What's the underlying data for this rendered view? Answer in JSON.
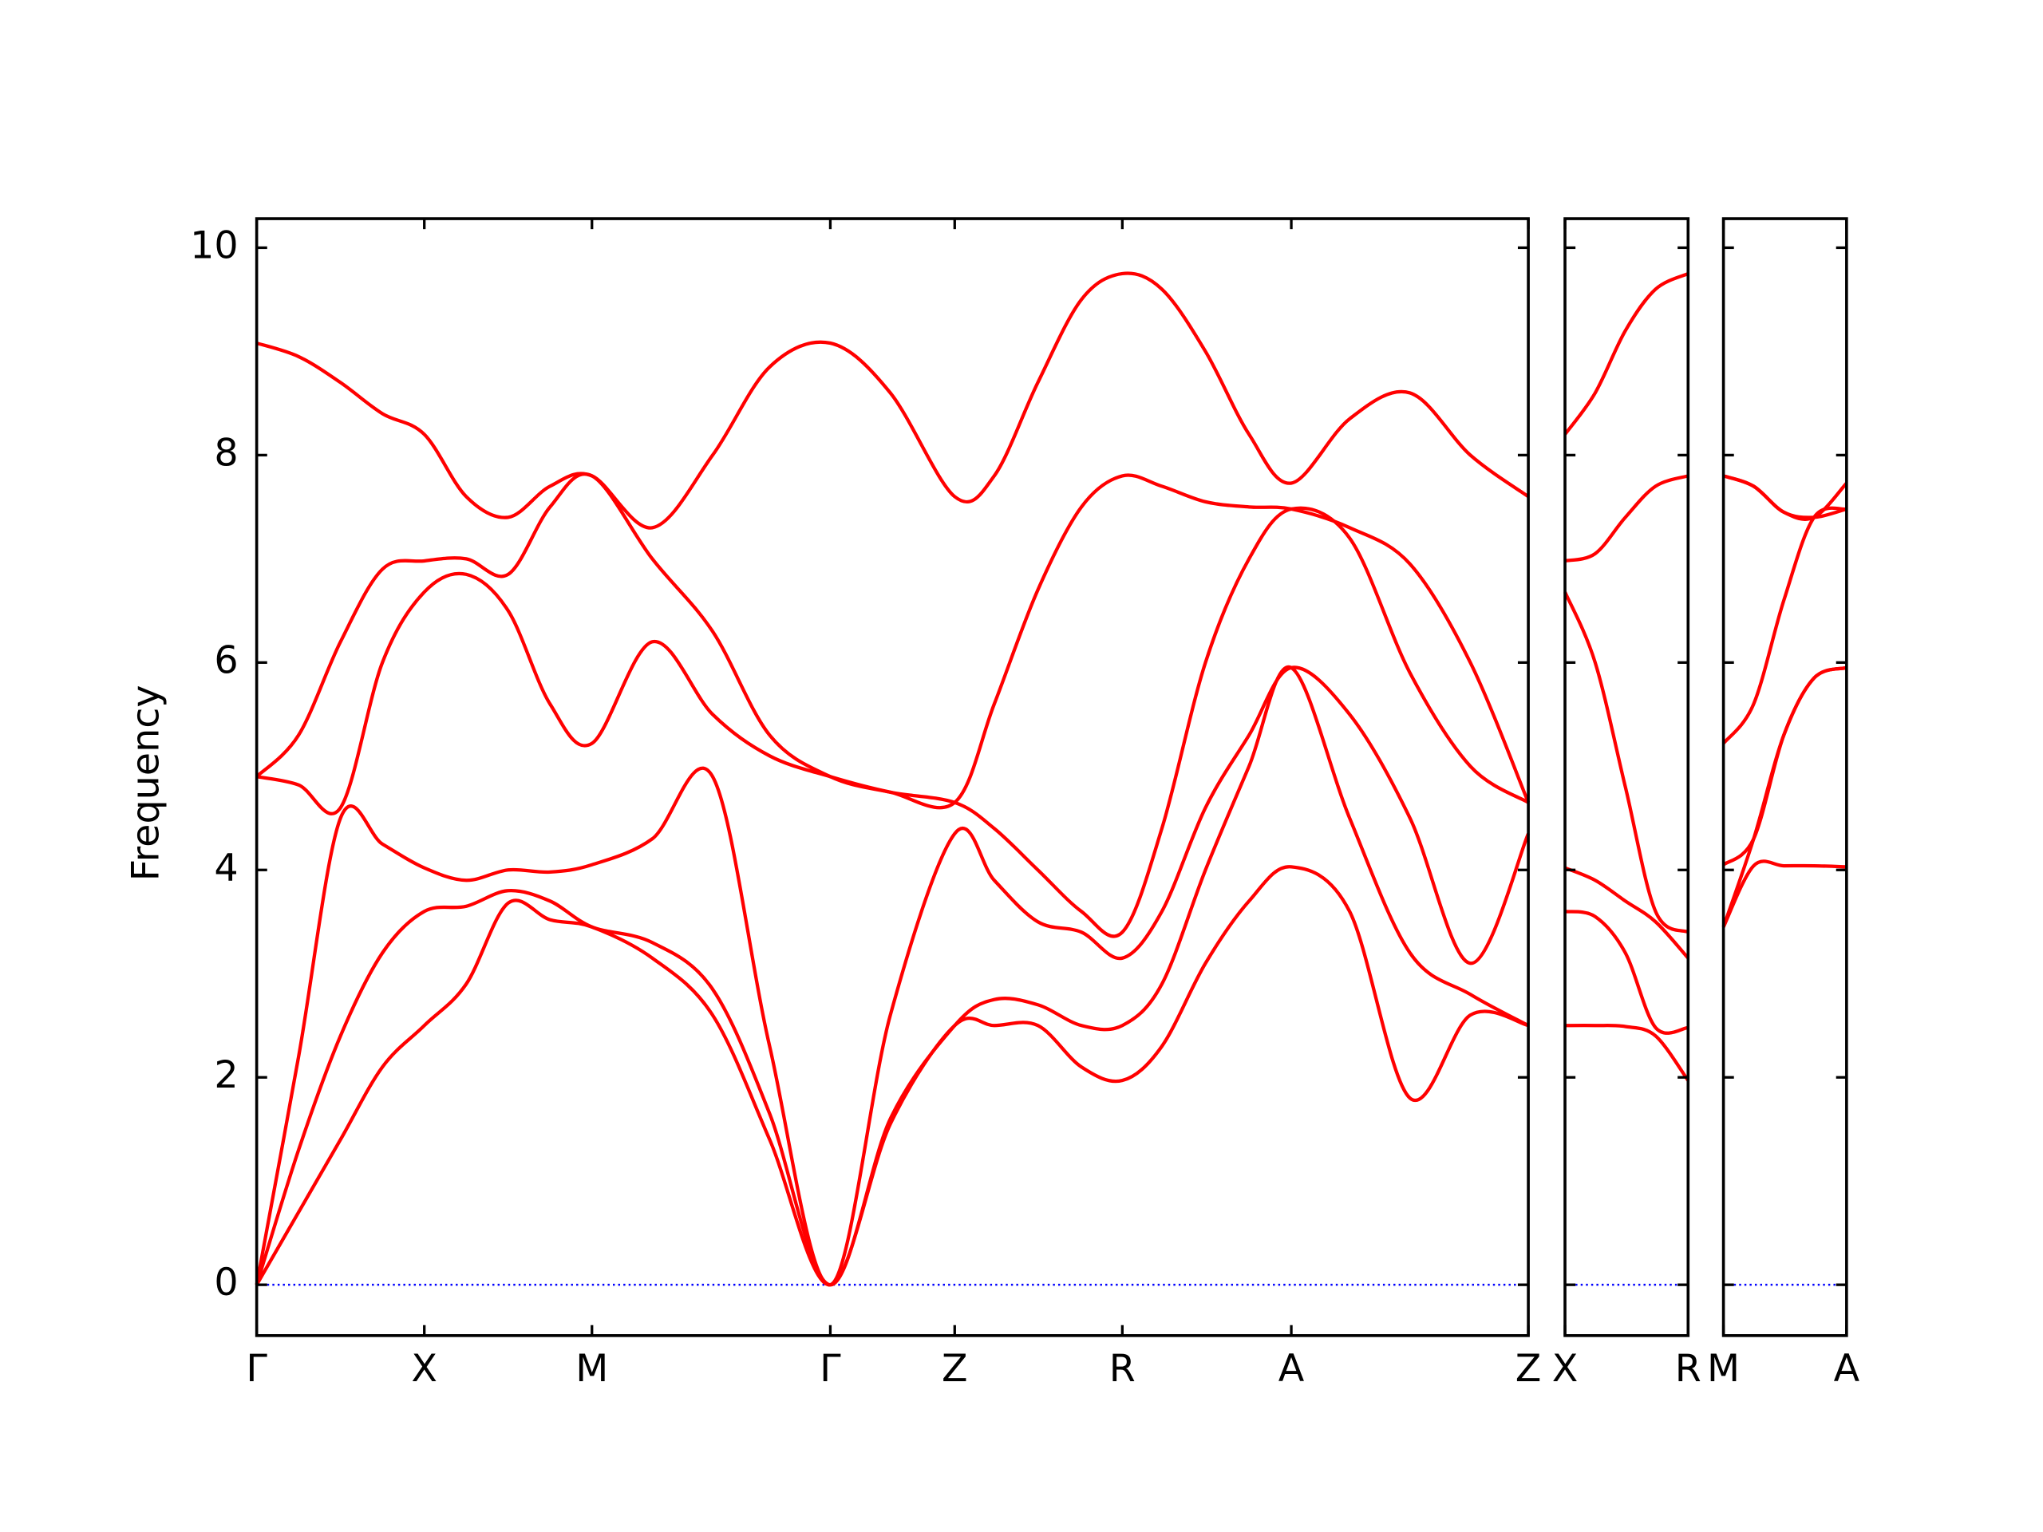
{
  "chart_data": [
    {
      "type": "line",
      "y_label": "Frequency",
      "x": [
        0,
        0.125,
        0.25,
        0.375,
        0.5,
        0.625,
        0.75,
        0.875,
        1.0,
        1.18,
        1.36,
        1.53,
        1.711,
        1.89,
        2.082,
        2.2,
        2.33,
        2.46,
        2.582,
        2.7,
        2.83,
        2.96,
        3.086,
        3.26,
        3.44,
        3.62,
        3.793
      ],
      "xlim": [
        0,
        3.793
      ],
      "xticks": [
        {
          "value": 0,
          "label": "Γ"
        },
        {
          "value": 0.5,
          "label": "X"
        },
        {
          "value": 1.0,
          "label": "M"
        },
        {
          "value": 1.711,
          "label": "Γ"
        },
        {
          "value": 2.082,
          "label": "Z"
        },
        {
          "value": 2.582,
          "label": "R"
        },
        {
          "value": 3.086,
          "label": "A"
        },
        {
          "value": 3.793,
          "label": "Z"
        }
      ],
      "ylim": [
        -0.49,
        10.28
      ],
      "yticks": [
        0,
        2,
        4,
        6,
        8,
        10
      ],
      "show_ytick_labels": true,
      "zero_line_color": "#0000ff",
      "series": [
        {
          "color": "#ff0000",
          "values": [
            0,
            0.7,
            1.4,
            2.1,
            2.5,
            2.9,
            3.68,
            3.52,
            3.45,
            3.15,
            2.6,
            1.4,
            0,
            1.55,
            2.5,
            2.5,
            2.5,
            2.1,
            1.97,
            2.3,
            3.1,
            3.7,
            4.03,
            3.6,
            1.8,
            2.6,
            2.5
          ]
        },
        {
          "color": "#ff0000",
          "values": [
            0,
            1.3,
            2.4,
            3.2,
            3.6,
            3.65,
            3.8,
            3.7,
            3.45,
            3.3,
            2.85,
            1.65,
            0,
            1.6,
            2.5,
            2.75,
            2.7,
            2.5,
            2.5,
            2.9,
            4.0,
            5.0,
            5.95,
            4.5,
            3.2,
            2.8,
            2.5
          ]
        },
        {
          "color": "#ff0000",
          "values": [
            0,
            2.2,
            4.5,
            4.25,
            4.02,
            3.9,
            4.0,
            3.98,
            4.05,
            4.3,
            4.9,
            2.3,
            0,
            2.6,
            4.35,
            3.9,
            3.5,
            3.4,
            3.15,
            3.6,
            4.6,
            5.3,
            5.95,
            5.5,
            4.5,
            3.1,
            4.35
          ]
        },
        {
          "color": "#ff0000",
          "values": [
            4.9,
            4.82,
            4.6,
            6.0,
            6.68,
            6.85,
            6.5,
            5.6,
            5.22,
            6.2,
            5.5,
            5.1,
            4.9,
            4.75,
            4.65,
            4.4,
            4.0,
            3.6,
            3.4,
            4.4,
            6.0,
            7.0,
            7.48,
            7.2,
            5.9,
            5.0,
            4.65
          ]
        },
        {
          "color": "#ff0000",
          "values": [
            4.9,
            5.3,
            6.2,
            6.9,
            6.98,
            7.0,
            6.85,
            7.5,
            7.8,
            7.0,
            6.3,
            5.3,
            4.9,
            4.75,
            4.65,
            5.6,
            6.7,
            7.5,
            7.8,
            7.7,
            7.55,
            7.5,
            7.48,
            7.3,
            6.95,
            6.0,
            4.65
          ]
        },
        {
          "color": "#ff0000",
          "values": [
            9.08,
            8.95,
            8.7,
            8.4,
            8.2,
            7.6,
            7.4,
            7.7,
            7.8,
            7.3,
            8.0,
            8.85,
            9.08,
            8.6,
            7.6,
            7.8,
            8.7,
            9.5,
            9.75,
            9.6,
            9.0,
            8.2,
            7.73,
            8.35,
            8.6,
            8.0,
            7.6
          ]
        }
      ]
    },
    {
      "type": "line",
      "x": [
        0,
        0.09,
        0.18,
        0.27,
        0.367
      ],
      "xlim": [
        0,
        0.367
      ],
      "xticks": [
        {
          "value": 0,
          "label": "X"
        },
        {
          "value": 0.367,
          "label": "R"
        }
      ],
      "ylim": [
        -0.49,
        10.28
      ],
      "yticks": [
        0,
        2,
        4,
        6,
        8,
        10
      ],
      "show_ytick_labels": false,
      "zero_line_color": "#0000ff",
      "series": [
        {
          "color": "#ff0000",
          "values": [
            2.5,
            2.5,
            2.49,
            2.4,
            1.97
          ]
        },
        {
          "color": "#ff0000",
          "values": [
            3.6,
            3.55,
            3.2,
            2.48,
            2.48
          ]
        },
        {
          "color": "#ff0000",
          "values": [
            4.02,
            3.9,
            3.7,
            3.5,
            3.15
          ]
        },
        {
          "color": "#ff0000",
          "values": [
            6.68,
            6.0,
            4.8,
            3.6,
            3.4
          ]
        },
        {
          "color": "#ff0000",
          "values": [
            6.98,
            7.05,
            7.4,
            7.7,
            7.8
          ]
        },
        {
          "color": "#ff0000",
          "values": [
            8.2,
            8.6,
            9.2,
            9.6,
            9.75
          ]
        }
      ]
    },
    {
      "type": "line",
      "x": [
        0,
        0.09,
        0.18,
        0.27,
        0.367
      ],
      "xlim": [
        0,
        0.367
      ],
      "xticks": [
        {
          "value": 0,
          "label": "M"
        },
        {
          "value": 0.367,
          "label": "A"
        }
      ],
      "ylim": [
        -0.49,
        10.28
      ],
      "yticks": [
        0,
        2,
        4,
        6,
        8,
        10
      ],
      "show_ytick_labels": false,
      "zero_line_color": "#0000ff",
      "series": [
        {
          "color": "#ff0000",
          "values": [
            3.45,
            4.04,
            4.04,
            4.04,
            4.03
          ]
        },
        {
          "color": "#ff0000",
          "values": [
            3.45,
            4.3,
            5.3,
            5.85,
            5.95
          ]
        },
        {
          "color": "#ff0000",
          "values": [
            4.05,
            4.3,
            5.3,
            5.85,
            5.95
          ]
        },
        {
          "color": "#ff0000",
          "values": [
            5.22,
            5.6,
            6.6,
            7.4,
            7.48
          ]
        },
        {
          "color": "#ff0000",
          "values": [
            7.8,
            7.7,
            7.45,
            7.4,
            7.48
          ]
        },
        {
          "color": "#ff0000",
          "values": [
            7.8,
            7.7,
            7.45,
            7.4,
            7.73
          ]
        }
      ]
    }
  ]
}
